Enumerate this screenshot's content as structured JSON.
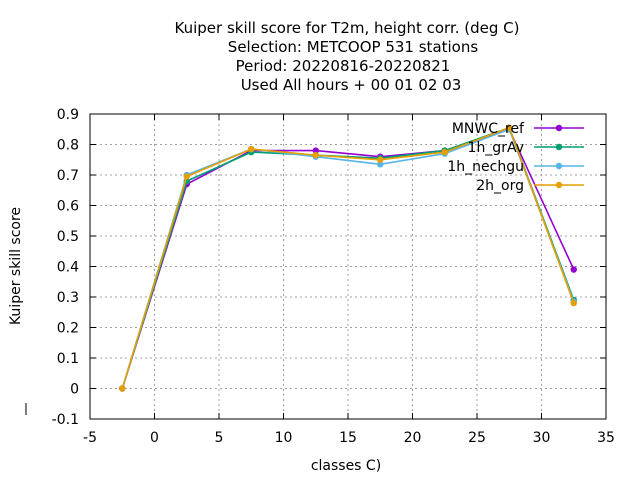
{
  "chart_data": {
    "type": "line",
    "title_lines": [
      "Kuiper skill score  for T2m, height corr. (deg C)",
      "Selection: METCOOP    531 stations",
      "Period: 20220816-20220821",
      "Used  All hours  + 00 01 02 03"
    ],
    "xlabel": "classes C)",
    "ylabel": "Kuiper skill score",
    "xlim": [
      -5,
      35
    ],
    "ylim": [
      -0.1,
      0.9
    ],
    "xticks": [
      -5,
      0,
      5,
      10,
      15,
      20,
      25,
      30,
      35
    ],
    "yticks": [
      -0.1,
      0,
      0.1,
      0.2,
      0.3,
      0.4,
      0.5,
      0.6,
      0.7,
      0.8,
      0.9
    ],
    "grid": true,
    "legend_position": "top-right",
    "x": [
      -2.5,
      2.5,
      7.5,
      12.5,
      17.5,
      22.5,
      27.5,
      32.5
    ],
    "series": [
      {
        "name": "MNWC_ref",
        "color": "#9400d3",
        "values": [
          0.0,
          0.67,
          0.78,
          0.78,
          0.76,
          0.78,
          0.85,
          0.39
        ]
      },
      {
        "name": "1h_grAv",
        "color": "#009e73",
        "values": [
          0.0,
          0.68,
          0.775,
          0.765,
          0.755,
          0.78,
          0.855,
          0.29
        ]
      },
      {
        "name": "1h_nechgu",
        "color": "#56b4e9",
        "values": [
          0.0,
          0.7,
          0.785,
          0.76,
          0.735,
          0.77,
          0.85,
          0.285
        ]
      },
      {
        "name": "2h_org",
        "color": "#e69f00",
        "values": [
          0.0,
          0.695,
          0.785,
          0.765,
          0.75,
          0.775,
          0.855,
          0.28
        ]
      }
    ]
  }
}
